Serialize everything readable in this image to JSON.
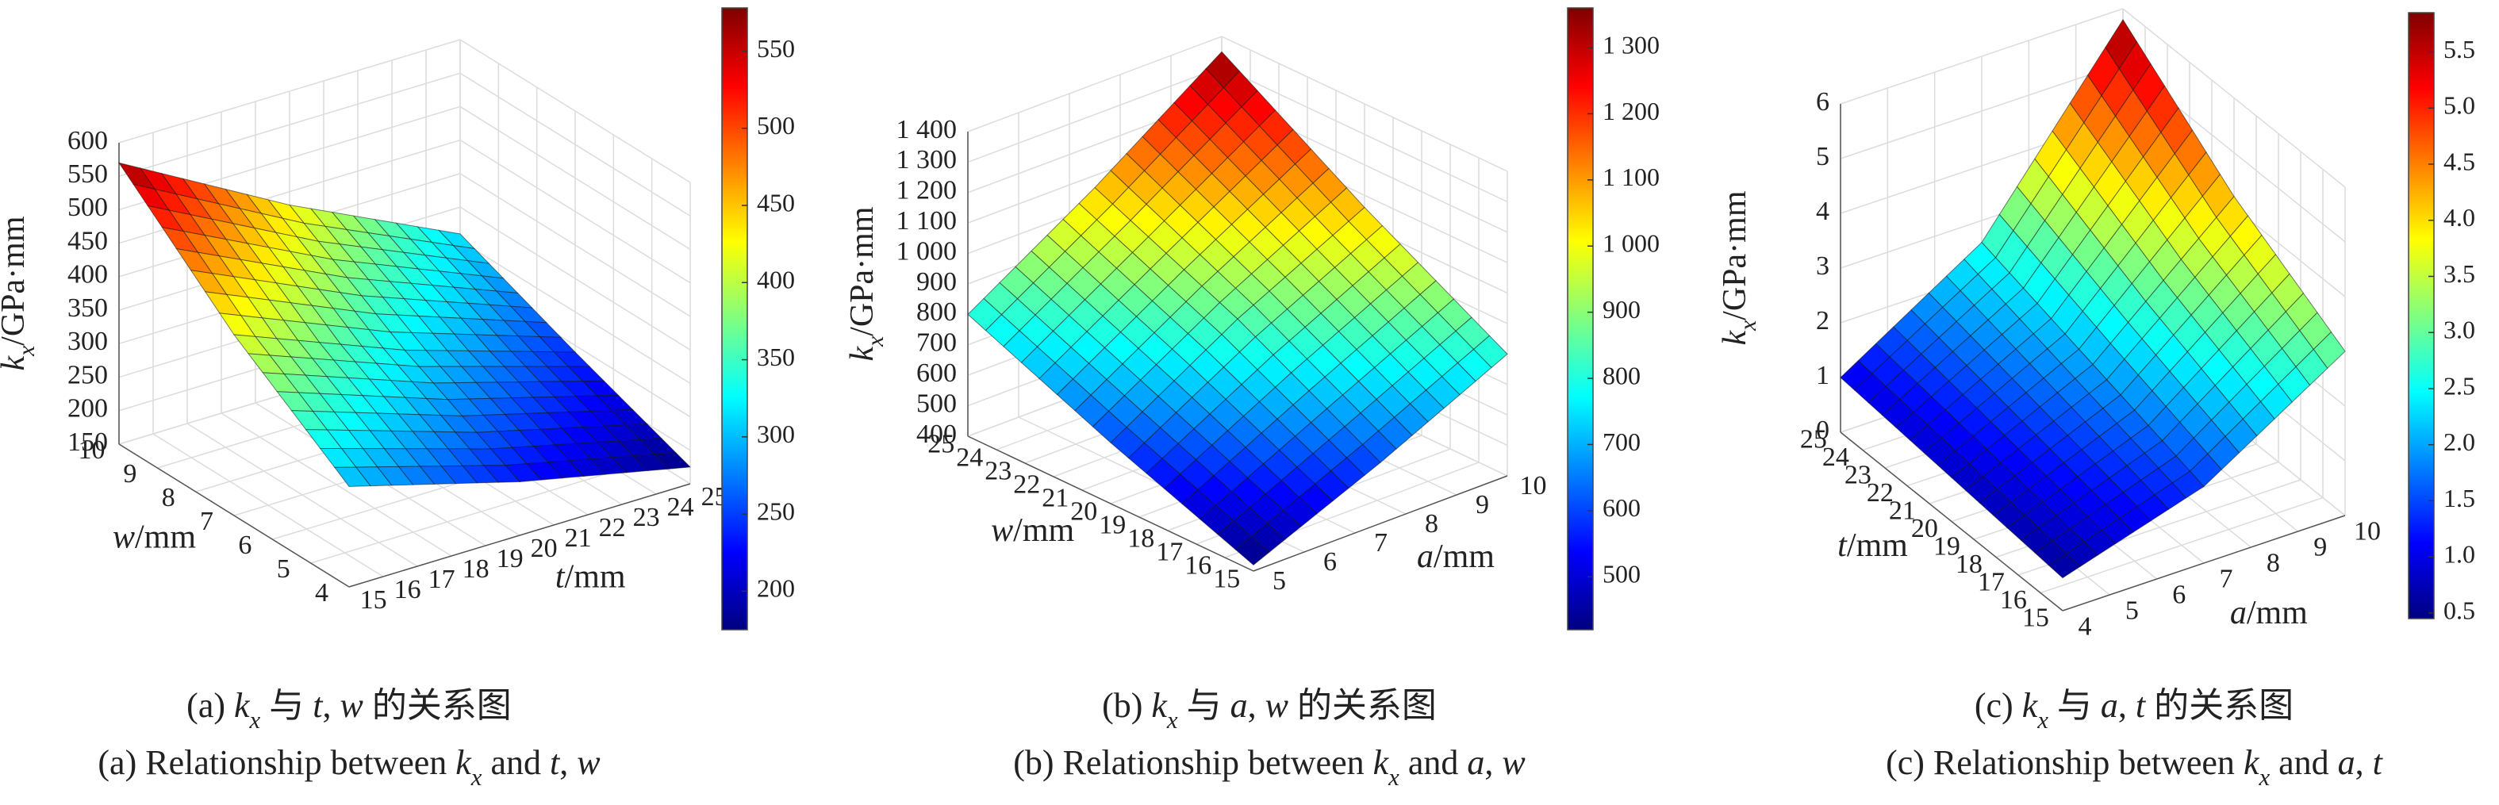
{
  "chart_data": [
    {
      "type": "surface",
      "colormap": "jet",
      "grid": true,
      "x_label": [
        "t",
        "/mm"
      ],
      "y_label": [
        "w",
        "/mm"
      ],
      "z_label": [
        "k",
        "x",
        "/GPa·mm"
      ],
      "x": [
        15,
        20,
        25
      ],
      "y": [
        4,
        7,
        10
      ],
      "z": [
        [
          300,
          230,
          175
        ],
        [
          420,
          320,
          240
        ],
        [
          570,
          430,
          310
        ]
      ],
      "xlim": [
        15,
        25
      ],
      "xticks": [
        15,
        16,
        17,
        18,
        19,
        20,
        21,
        22,
        23,
        24,
        25
      ],
      "ylim": [
        4,
        10
      ],
      "yticks": [
        4,
        5,
        6,
        7,
        8,
        9,
        10
      ],
      "zlim": [
        150,
        600
      ],
      "zticks": [
        150,
        200,
        250,
        300,
        350,
        400,
        450,
        500,
        550,
        600
      ],
      "clim": [
        175,
        578
      ],
      "cticks": [
        200,
        250,
        300,
        350,
        400,
        450,
        500,
        550
      ],
      "caption_cn": [
        "(a) ",
        "k",
        "x",
        " 与 ",
        "t",
        ", ",
        "w",
        " 的关系图"
      ],
      "caption_en": [
        "(a) Relationship between ",
        "k",
        "x",
        " and ",
        "t",
        ", ",
        "w"
      ]
    },
    {
      "type": "surface",
      "colormap": "jet",
      "grid": true,
      "x_label": [
        "a",
        "/mm"
      ],
      "y_label": [
        "w",
        "/mm"
      ],
      "z_label": [
        "k",
        "x",
        "/GPa·mm"
      ],
      "x": [
        5,
        7.5,
        10
      ],
      "y": [
        15,
        20,
        25
      ],
      "z": [
        [
          420,
          600,
          800
        ],
        [
          600,
          850,
          1060
        ],
        [
          800,
          1060,
          1350
        ]
      ],
      "xlim": [
        5,
        10
      ],
      "xticks": [
        5,
        6,
        7,
        8,
        9,
        10
      ],
      "ylim": [
        15,
        25
      ],
      "yticks": [
        15,
        16,
        17,
        18,
        19,
        20,
        21,
        22,
        23,
        24,
        25
      ],
      "zlim": [
        400,
        1400
      ],
      "zticks": [
        400,
        500,
        600,
        700,
        800,
        900,
        {
          "value": 1000,
          "label": "1 000"
        },
        {
          "value": 1100,
          "label": "1 100"
        },
        {
          "value": 1200,
          "label": "1 200"
        },
        {
          "value": 1300,
          "label": "1 300"
        },
        {
          "value": 1400,
          "label": "1 400"
        }
      ],
      "clim": [
        420,
        1360
      ],
      "cticks": [
        500,
        600,
        700,
        800,
        900,
        {
          "value": 1000,
          "label": "1 000"
        },
        {
          "value": 1100,
          "label": "1 100"
        },
        {
          "value": 1200,
          "label": "1 200"
        },
        {
          "value": 1300,
          "label": "1 300"
        }
      ],
      "caption_cn": [
        "(b) ",
        "k",
        "x",
        " 与 ",
        "a",
        ", ",
        "w",
        " 的关系图"
      ],
      "caption_en": [
        "(b) Relationship between ",
        "k",
        "x",
        " and ",
        "a",
        ", ",
        "w"
      ]
    },
    {
      "type": "surface",
      "colormap": "jet",
      "grid": true,
      "x_label": [
        "a",
        "/mm"
      ],
      "y_label": [
        "t",
        "/mm"
      ],
      "z_label": [
        "k",
        "x",
        "/GPa·mm"
      ],
      "x": [
        4,
        7,
        10
      ],
      "y": [
        15,
        20,
        25
      ],
      "z": [
        [
          0.6,
          1.4,
          3.0
        ],
        [
          0.8,
          2.0,
          4.2
        ],
        [
          1.0,
          2.6,
          5.8
        ]
      ],
      "xlim": [
        4,
        10
      ],
      "xticks": [
        4,
        5,
        6,
        7,
        8,
        9,
        10
      ],
      "ylim": [
        15,
        25
      ],
      "yticks": [
        15,
        16,
        17,
        18,
        19,
        20,
        21,
        22,
        23,
        24,
        25
      ],
      "zlim": [
        0,
        6
      ],
      "zticks": [
        0,
        1,
        2,
        3,
        4,
        5,
        6
      ],
      "clim": [
        0.45,
        5.85
      ],
      "cticks": [
        0.5,
        {
          "value": 1,
          "label": "1.0"
        },
        1.5,
        {
          "value": 2,
          "label": "2.0"
        },
        2.5,
        {
          "value": 3,
          "label": "3.0"
        },
        3.5,
        {
          "value": 4,
          "label": "4.0"
        },
        4.5,
        {
          "value": 5,
          "label": "5.0"
        },
        5.5
      ],
      "caption_cn": [
        "(c) ",
        "k",
        "x",
        " 与 ",
        "a",
        ", ",
        "t",
        " 的关系图"
      ],
      "caption_en": [
        "(c) Relationship between ",
        "k",
        "x",
        " and ",
        "a",
        ", ",
        "t"
      ]
    }
  ]
}
